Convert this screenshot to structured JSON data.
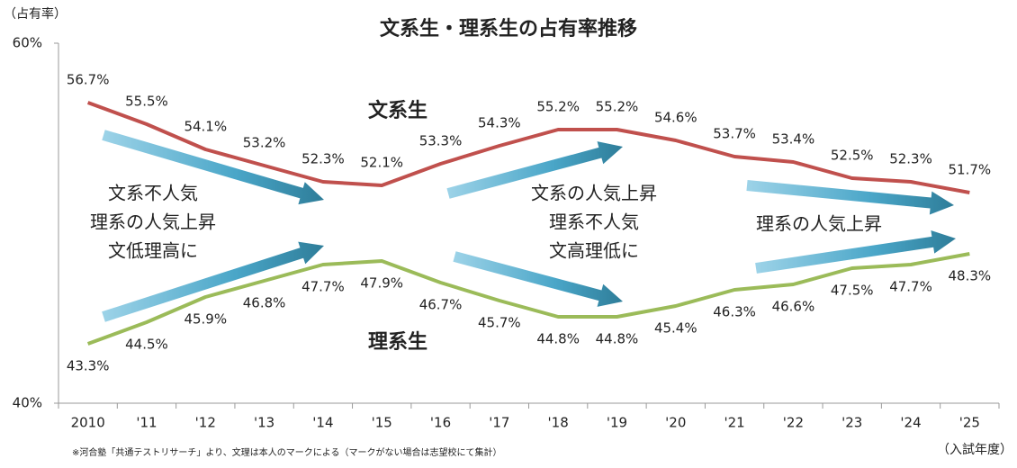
{
  "chart_data": {
    "type": "line",
    "title": "文系生・理系生の占有率推移",
    "y_axis_label": "（占有率）",
    "x_axis_label": "（入試年度）",
    "footnote": "※河合塾「共通テストリサーチ」より、文理は本人のマークによる（マークがない場合は志望校にて集計）",
    "categories": [
      "2010",
      "'11",
      "'12",
      "'13",
      "'14",
      "'15",
      "'16",
      "'17",
      "'18",
      "'19",
      "'20",
      "'21",
      "'22",
      "'23",
      "'24",
      "'25"
    ],
    "series": [
      {
        "name": "文系生",
        "color": "#c0504d",
        "values": [
          56.7,
          55.5,
          54.1,
          53.2,
          52.3,
          52.1,
          53.3,
          54.3,
          55.2,
          55.2,
          54.6,
          53.7,
          53.4,
          52.5,
          52.3,
          51.7
        ],
        "value_labels": [
          "56.7%",
          "55.5%",
          "54.1%",
          "53.2%",
          "52.3%",
          "52.1%",
          "53.3%",
          "54.3%",
          "55.2%",
          "55.2%",
          "54.6%",
          "53.7%",
          "53.4%",
          "52.5%",
          "52.3%",
          "51.7%"
        ]
      },
      {
        "name": "理系生",
        "color": "#9bbb59",
        "values": [
          43.3,
          44.5,
          45.9,
          46.8,
          47.7,
          47.9,
          46.7,
          45.7,
          44.8,
          44.8,
          45.4,
          46.3,
          46.6,
          47.5,
          47.7,
          48.3
        ],
        "value_labels": [
          "43.3%",
          "44.5%",
          "45.9%",
          "46.8%",
          "47.7%",
          "47.9%",
          "46.7%",
          "45.7%",
          "44.8%",
          "44.8%",
          "45.4%",
          "46.3%",
          "46.6%",
          "47.5%",
          "47.7%",
          "48.3%"
        ]
      }
    ],
    "ylim": [
      40,
      60
    ],
    "yticks": [
      {
        "value": 40,
        "label": "40%"
      },
      {
        "value": 60,
        "label": "60%"
      }
    ],
    "annotations": [
      {
        "lines": [
          "文系不人気",
          "理系の人気上昇",
          "文低理高に"
        ]
      },
      {
        "lines": [
          "文系の人気上昇",
          "理系不人気",
          "文高理低に"
        ]
      },
      {
        "lines": [
          "理系の人気上昇"
        ]
      }
    ]
  }
}
